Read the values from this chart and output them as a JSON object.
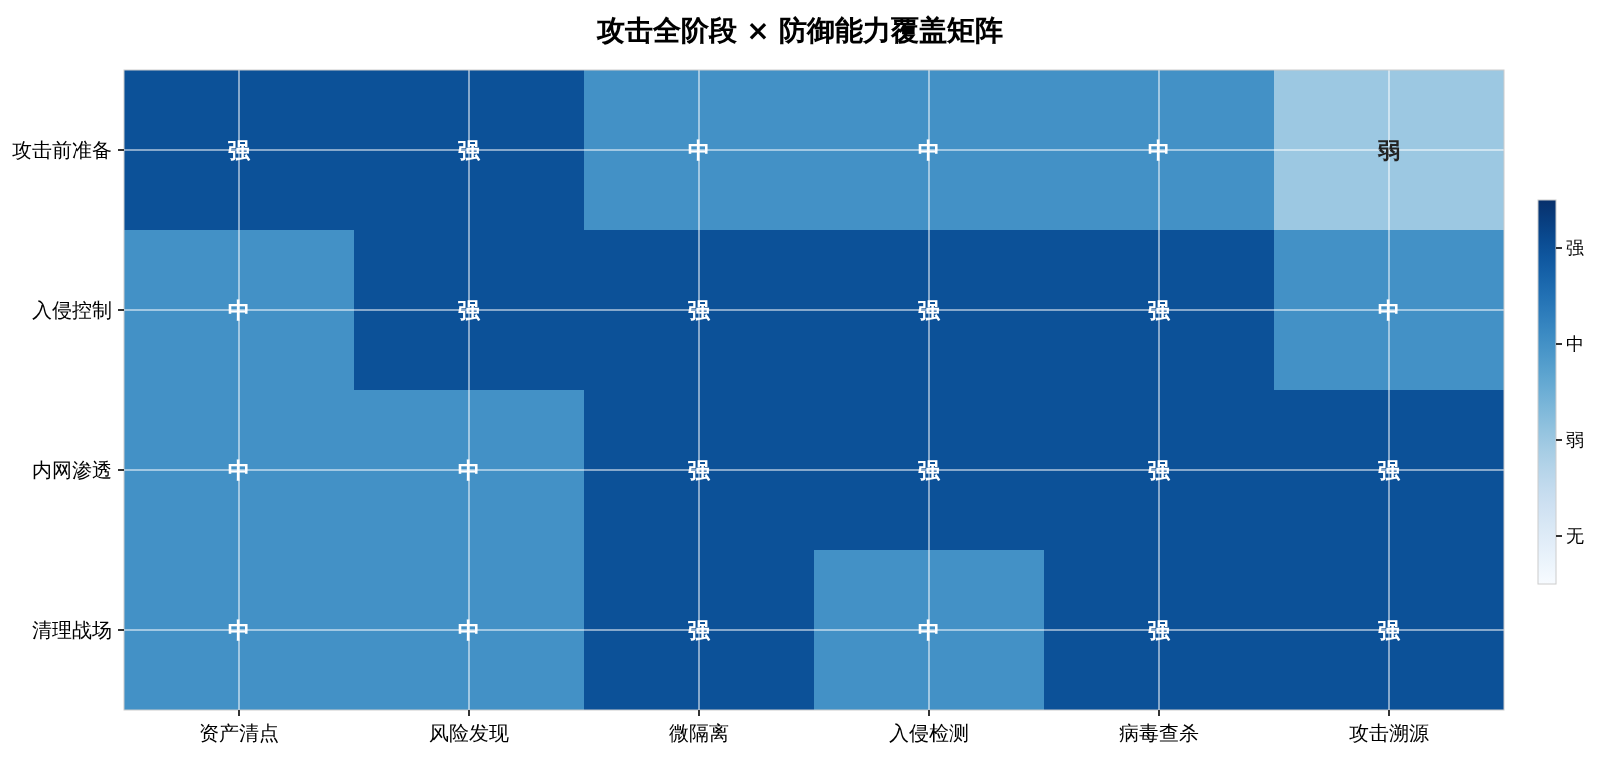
{
  "chart_data": {
    "type": "heatmap",
    "title": "攻击全阶段 × 防御能力覆盖矩阵",
    "categories": [
      "资产清点",
      "风险发现",
      "微隔离",
      "入侵检测",
      "病毒查杀",
      "攻击溯源"
    ],
    "y_categories": [
      "攻击前准备",
      "入侵控制",
      "内网渗透",
      "清理战场"
    ],
    "cells": [
      [
        3,
        3,
        2,
        2,
        2,
        1
      ],
      [
        2,
        3,
        3,
        3,
        3,
        2
      ],
      [
        2,
        2,
        3,
        3,
        3,
        3
      ],
      [
        2,
        2,
        3,
        2,
        3,
        3
      ]
    ],
    "cell_labels": [
      [
        "强",
        "强",
        "中",
        "中",
        "中",
        "弱"
      ],
      [
        "中",
        "强",
        "强",
        "强",
        "强",
        "中"
      ],
      [
        "中",
        "中",
        "强",
        "强",
        "强",
        "强"
      ],
      [
        "中",
        "中",
        "强",
        "中",
        "强",
        "强"
      ]
    ],
    "clim": [
      -0.5,
      3.5
    ],
    "cticks": [
      {
        "value": 0,
        "label": "无"
      },
      {
        "value": 1,
        "label": "弱"
      },
      {
        "value": 2,
        "label": "中"
      },
      {
        "value": 3,
        "label": "强"
      }
    ],
    "grid": true
  }
}
